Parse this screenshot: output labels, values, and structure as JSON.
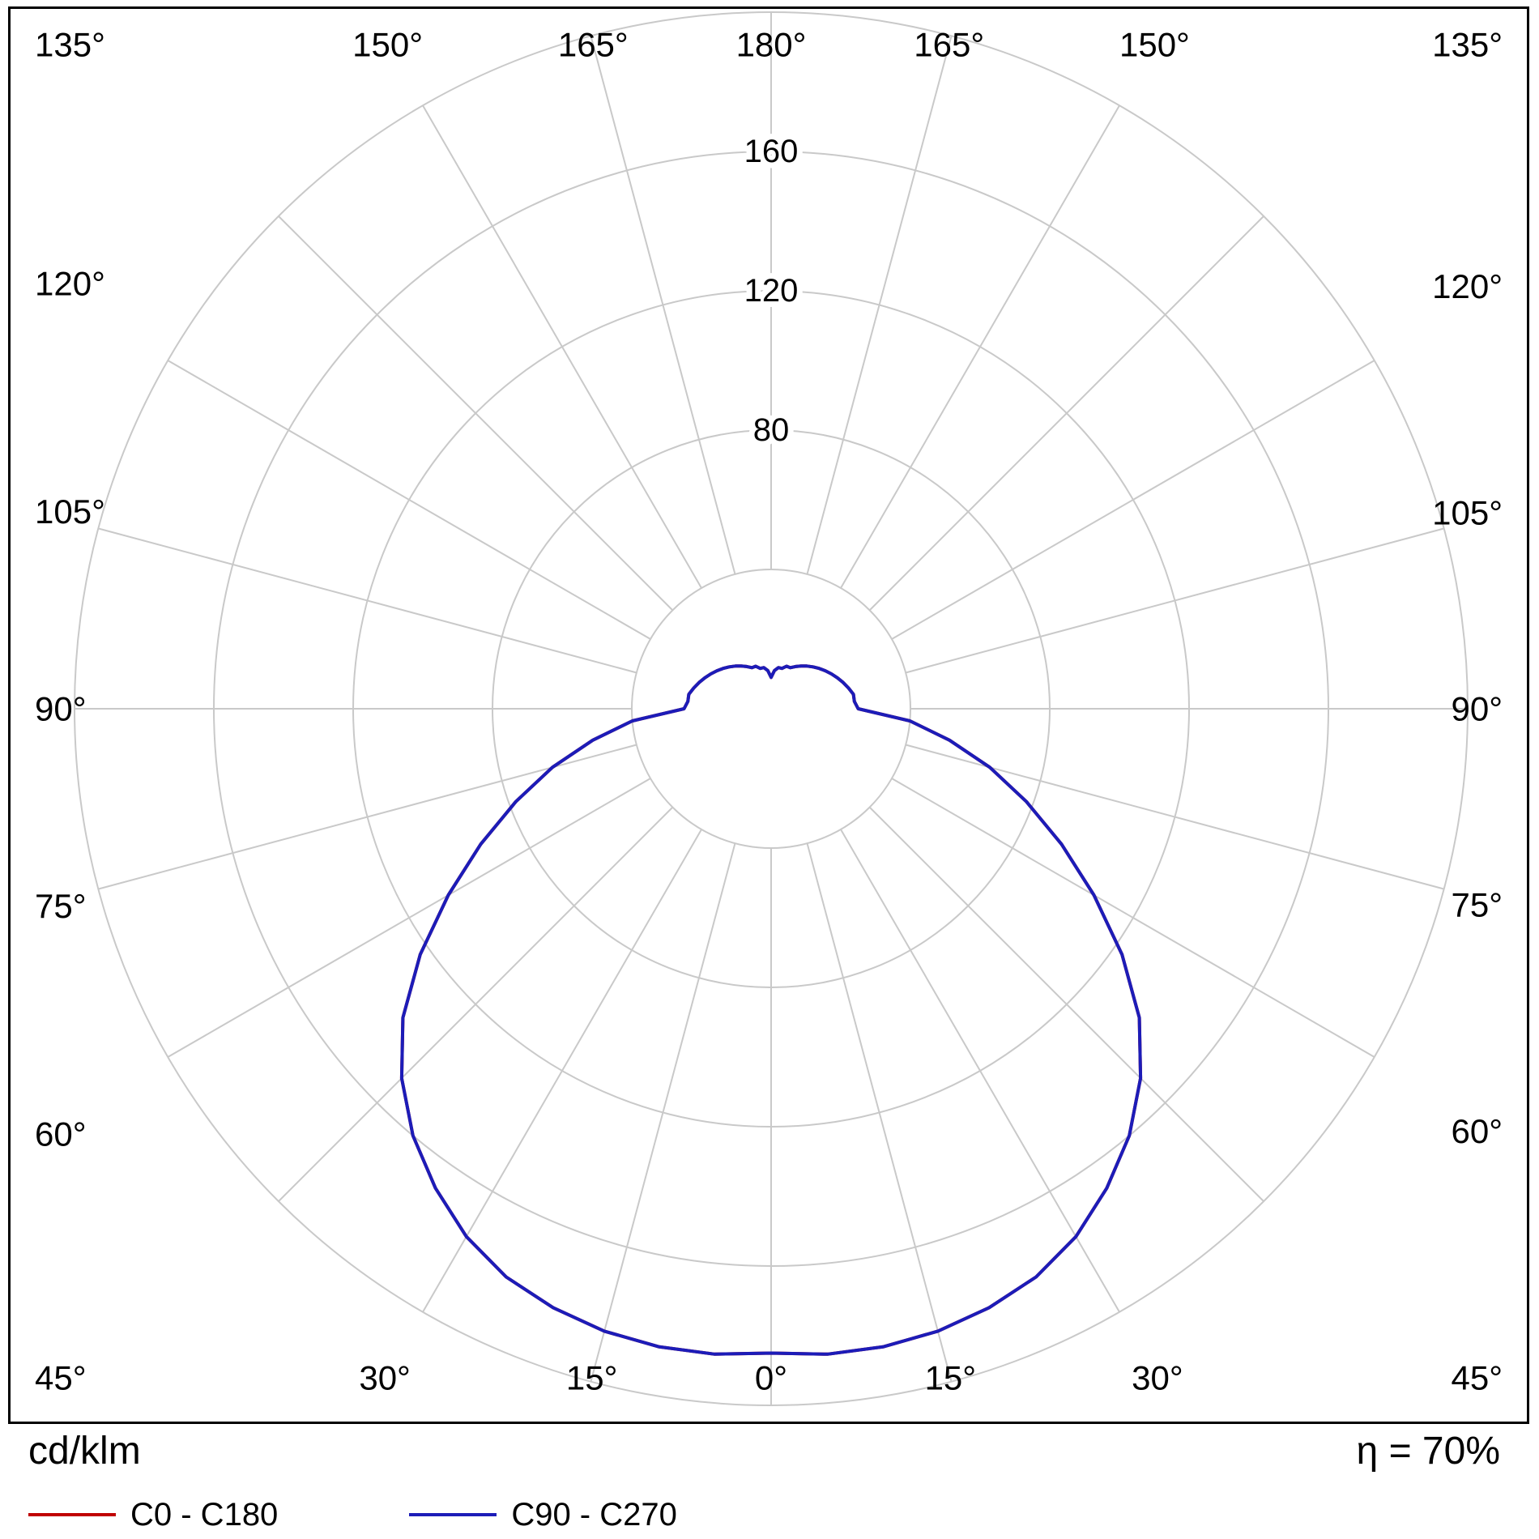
{
  "footer": {
    "unit_label": "cd/klm",
    "efficiency_label": "η = 70%"
  },
  "chart_data": {
    "type": "polar",
    "subtype": "luminous-intensity-distribution",
    "unit_label": "cd/klm",
    "efficiency_label": "η = 70%",
    "grid_color": "#c9c9c9",
    "background_color": "#ffffff",
    "gamma_step_deg": 5,
    "degree_suffix": "°",
    "angle_labels_deg": [
      0,
      15,
      30,
      45,
      60,
      75,
      90,
      105,
      120,
      135,
      150,
      165,
      180
    ],
    "rings": [
      40,
      80,
      120,
      160,
      200
    ],
    "ring_labels": [
      80,
      120,
      160
    ],
    "radial_max": 200,
    "legend_position": "bottom-left",
    "series": [
      {
        "name": "C0 - C180",
        "color": "#c00000",
        "values": [
          185,
          186,
          186,
          185,
          183,
          180,
          175,
          168,
          160,
          150,
          138,
          123,
          107,
          92,
          78,
          65,
          52,
          40,
          25,
          24,
          24,
          23,
          22,
          21,
          20,
          19,
          18,
          17,
          16,
          15,
          14,
          13,
          13,
          12,
          12,
          11,
          9
        ]
      },
      {
        "name": "C90 - C270",
        "color": "#1c1cb8",
        "values": [
          185,
          186,
          186,
          185,
          183,
          180,
          175,
          168,
          160,
          150,
          138,
          123,
          107,
          92,
          78,
          65,
          52,
          40,
          25,
          24,
          24,
          23,
          22,
          21,
          20,
          19,
          18,
          17,
          16,
          15,
          14,
          13,
          13,
          12,
          12,
          11,
          9
        ]
      }
    ]
  }
}
